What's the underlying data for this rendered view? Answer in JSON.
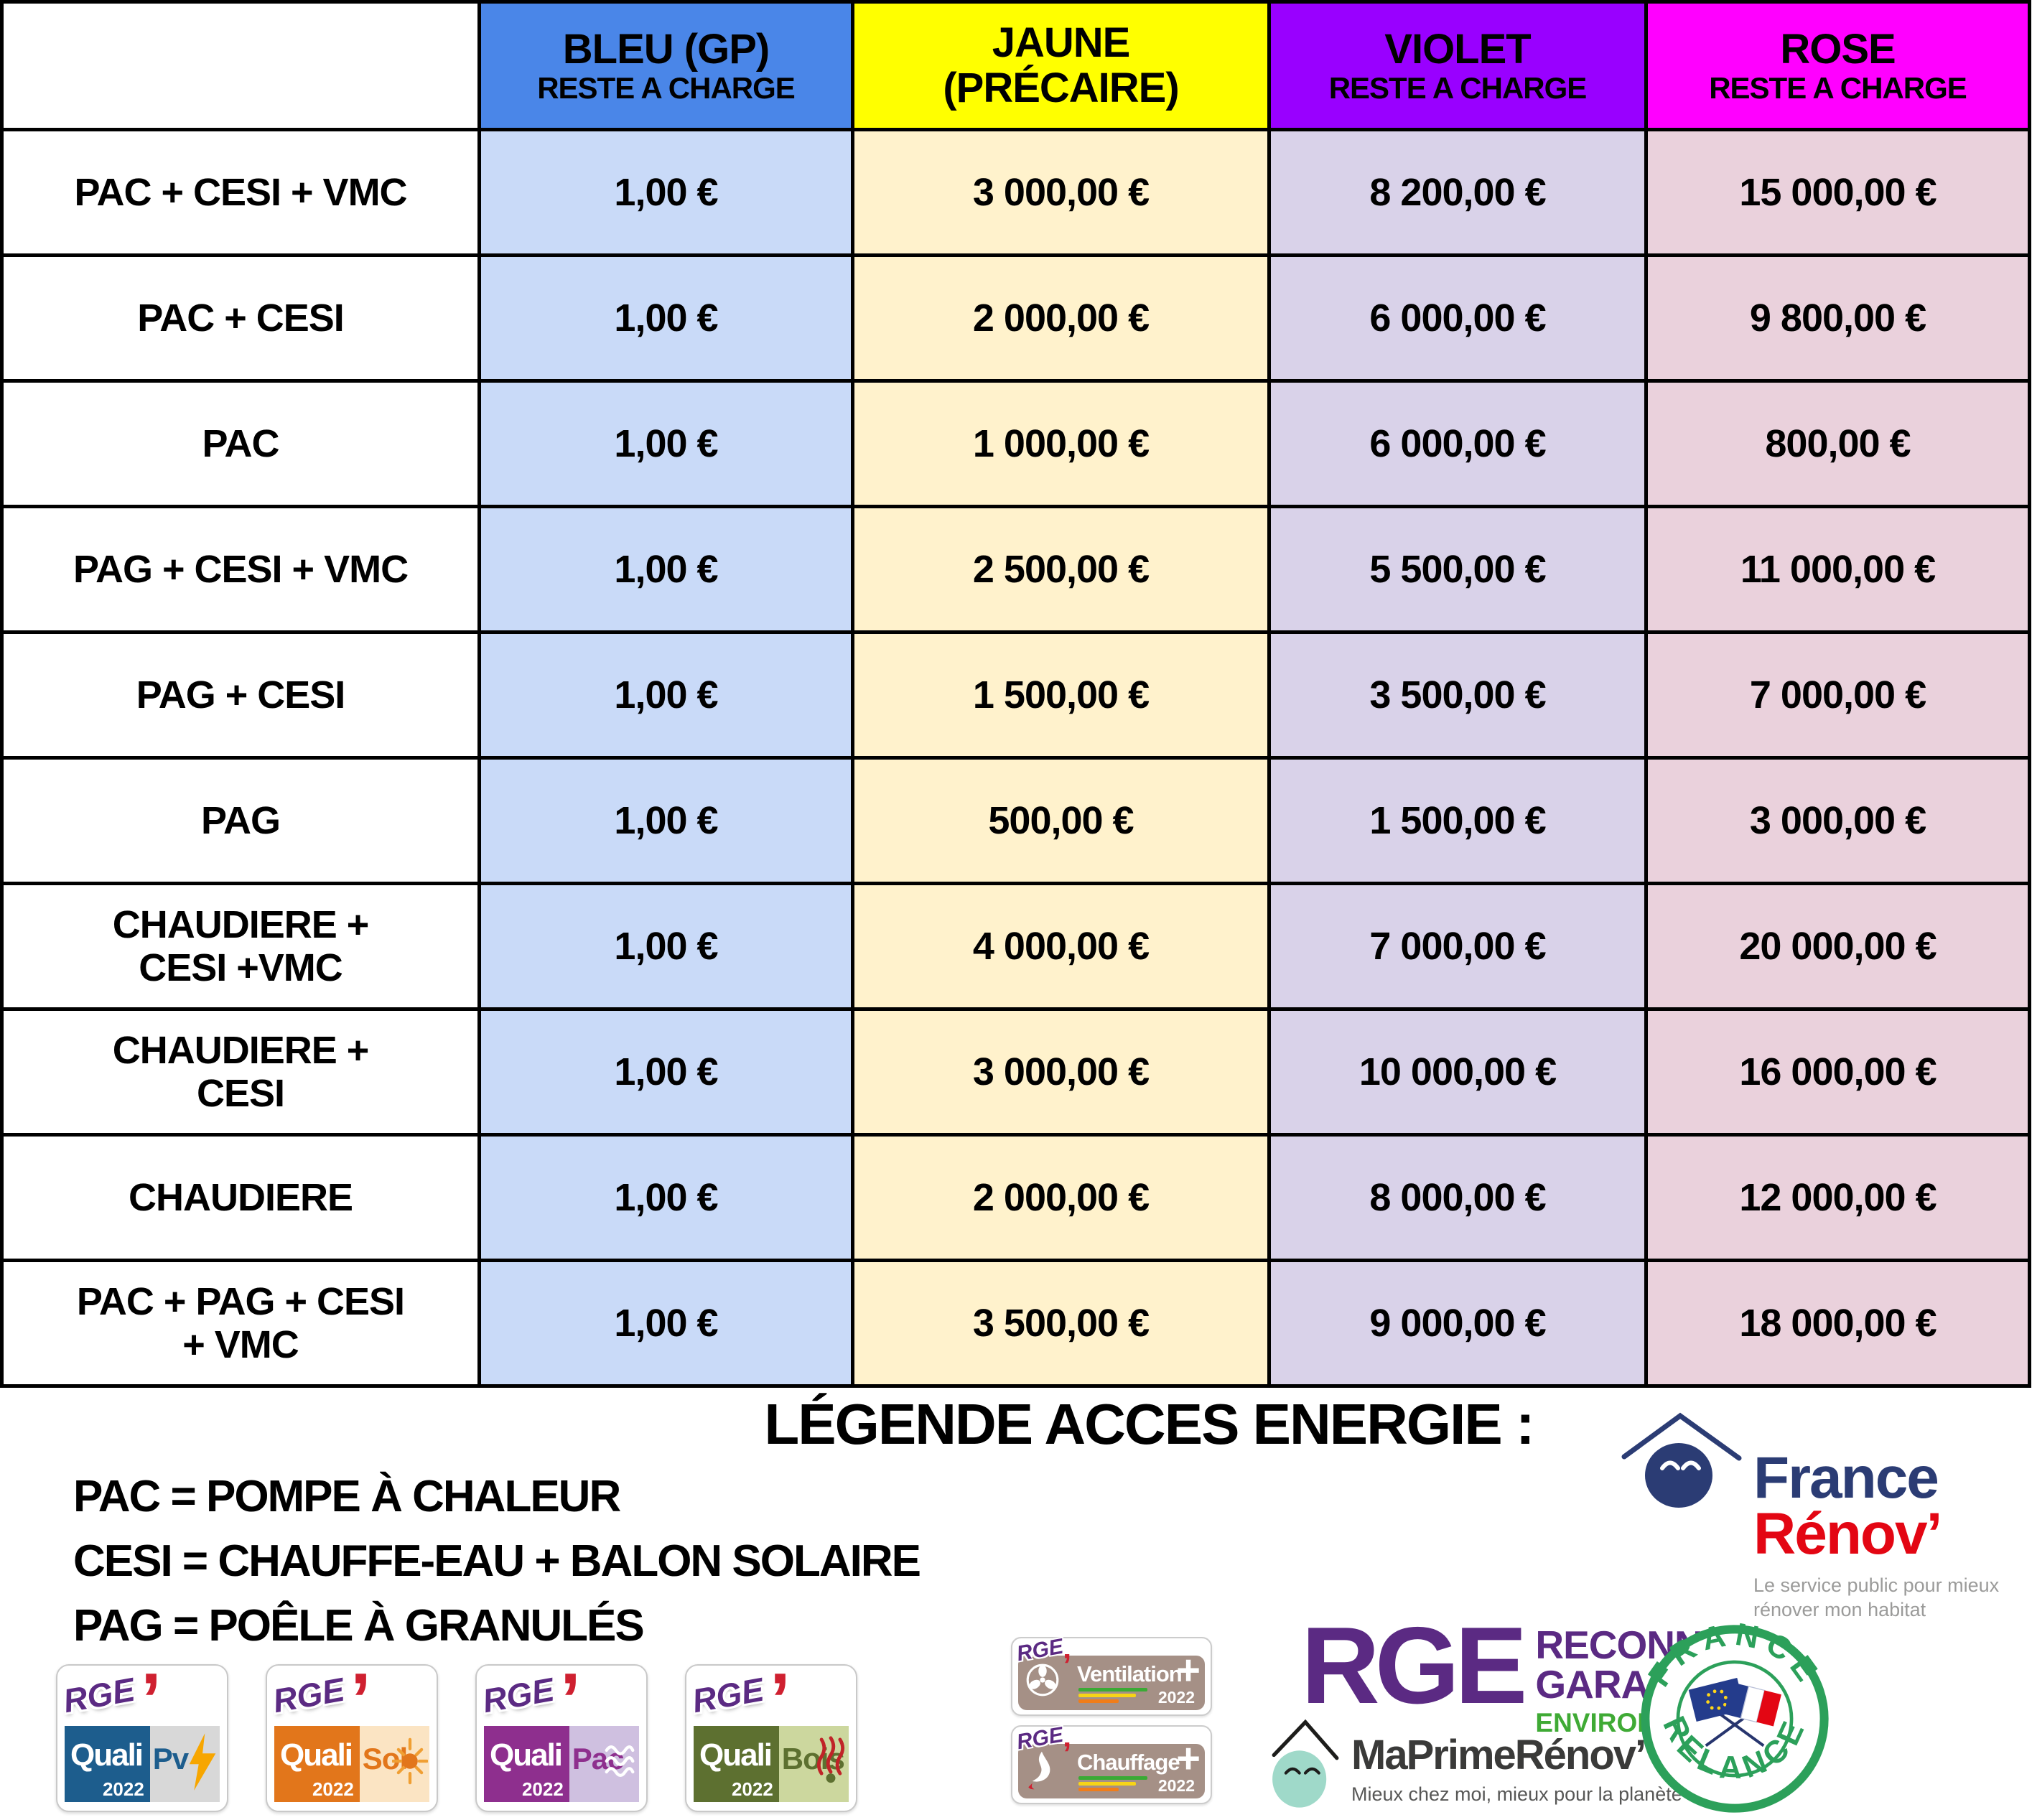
{
  "table": {
    "corner_label": "",
    "columns": [
      {
        "line1": "BLEU (GP)",
        "line2": "",
        "subtitle": "RESTE A CHARGE",
        "header_bg": "#4a86e8",
        "cell_bg": "#c9daf8"
      },
      {
        "line1": "JAUNE",
        "line2": "(PRÉCAIRE)",
        "subtitle": "",
        "header_bg": "#ffff00",
        "cell_bg": "#fff2cc"
      },
      {
        "line1": "VIOLET",
        "line2": "",
        "subtitle": "RESTE A CHARGE",
        "header_bg": "#9900ff",
        "cell_bg": "#d9d2e9"
      },
      {
        "line1": "ROSE",
        "line2": "",
        "subtitle": "RESTE A CHARGE",
        "header_bg": "#ff00ff",
        "cell_bg": "#ead1dc"
      }
    ],
    "rows": [
      {
        "label": "PAC + CESI + VMC",
        "values": [
          "1,00 €",
          "3 000,00 €",
          "8 200,00 €",
          "15 000,00 €"
        ]
      },
      {
        "label": "PAC + CESI",
        "values": [
          "1,00 €",
          "2 000,00 €",
          "6 000,00 €",
          "9 800,00 €"
        ]
      },
      {
        "label": "PAC",
        "values": [
          "1,00 €",
          "1 000,00 €",
          "6 000,00 €",
          "800,00 €"
        ]
      },
      {
        "label": "PAG + CESI + VMC",
        "values": [
          "1,00 €",
          "2 500,00 €",
          "5 500,00 €",
          "11 000,00 €"
        ]
      },
      {
        "label": "PAG + CESI",
        "values": [
          "1,00 €",
          "1 500,00 €",
          "3 500,00 €",
          "7 000,00 €"
        ]
      },
      {
        "label": "PAG",
        "values": [
          "1,00 €",
          "500,00 €",
          "1 500,00 €",
          "3 000,00 €"
        ]
      },
      {
        "label": "CHAUDIERE +\nCESI +VMC",
        "values": [
          "1,00 €",
          "4 000,00 €",
          "7 000,00 €",
          "20 000,00 €"
        ]
      },
      {
        "label": "CHAUDIERE +\nCESI",
        "values": [
          "1,00 €",
          "3 000,00 €",
          "10 000,00 €",
          "16 000,00 €"
        ]
      },
      {
        "label": "CHAUDIERE",
        "values": [
          "1,00 €",
          "2 000,00 €",
          "8 000,00 €",
          "12 000,00 €"
        ]
      },
      {
        "label": "PAC + PAG + CESI\n+ VMC",
        "values": [
          "1,00 €",
          "3 500,00 €",
          "9 000,00 €",
          "18 000,00 €"
        ]
      }
    ]
  },
  "legend": {
    "title": "LÉGENDE ACCES ENERGIE :",
    "items": [
      "PAC = POMPE À CHALEUR",
      "CESI = CHAUFFE-EAU + BALON SOLAIRE",
      "PAG = POÊLE À GRANULÉS"
    ]
  },
  "logos": {
    "colors": {
      "rge_purple": "#5b2a83",
      "rge_green": "#3faa35",
      "badge_taupe": "#a59086",
      "france_renov_navy": "#2b3c74",
      "france_renov_red": "#e30613",
      "france_relance_green": "#2ca05a",
      "maprimerenov_mint": "#9fd9c9"
    },
    "quali_badges": [
      {
        "rge": "RGE",
        "quali": "Quali",
        "name": "Pv",
        "year": "2022",
        "main_color": "#1d5d8d",
        "light_color": "#d8d8d8",
        "name_color": "#1d5d8d",
        "glyph": "lightning"
      },
      {
        "rge": "RGE",
        "quali": "Quali",
        "name": "Sol",
        "year": "2022",
        "main_color": "#e2761b",
        "light_color": "#fbe4c3",
        "name_color": "#e2761b",
        "glyph": "sun"
      },
      {
        "rge": "RGE",
        "quali": "Quali",
        "name": "Pac",
        "year": "2022",
        "main_color": "#8e2f8e",
        "light_color": "#cfc0e0",
        "name_color": "#8e2f8e",
        "glyph": "waves"
      },
      {
        "rge": "RGE",
        "quali": "Quali",
        "name": "Bois",
        "year": "2022",
        "main_color": "#5d7030",
        "light_color": "#ccd79e",
        "name_color": "#5d7030",
        "glyph": "heatlines"
      }
    ],
    "plus_badges": [
      {
        "rge": "RGE",
        "comma": "’",
        "label": "Ventilation",
        "plus": "+",
        "year": "2022",
        "glyph": "fan"
      },
      {
        "rge": "RGE",
        "comma": "’",
        "label": "Chauffage",
        "plus": "+",
        "year": "2022",
        "glyph": "flame"
      }
    ],
    "rge_main": {
      "rge": "RGE",
      "line1": "RECONNU",
      "line2": "GARANT",
      "line3": "ENVIRONNEMENT"
    },
    "maprimerenov": {
      "title": "MaPrimeRénov’",
      "tagline": "Mieux chez moi, mieux pour la planète"
    },
    "france_relance": {
      "top": "FRANCE",
      "bottom": "RELANCE"
    },
    "france_renov": {
      "line1": "France",
      "line2": "Rénov’",
      "tagline1": "Le service public pour mieux",
      "tagline2": "rénover mon habitat"
    }
  }
}
